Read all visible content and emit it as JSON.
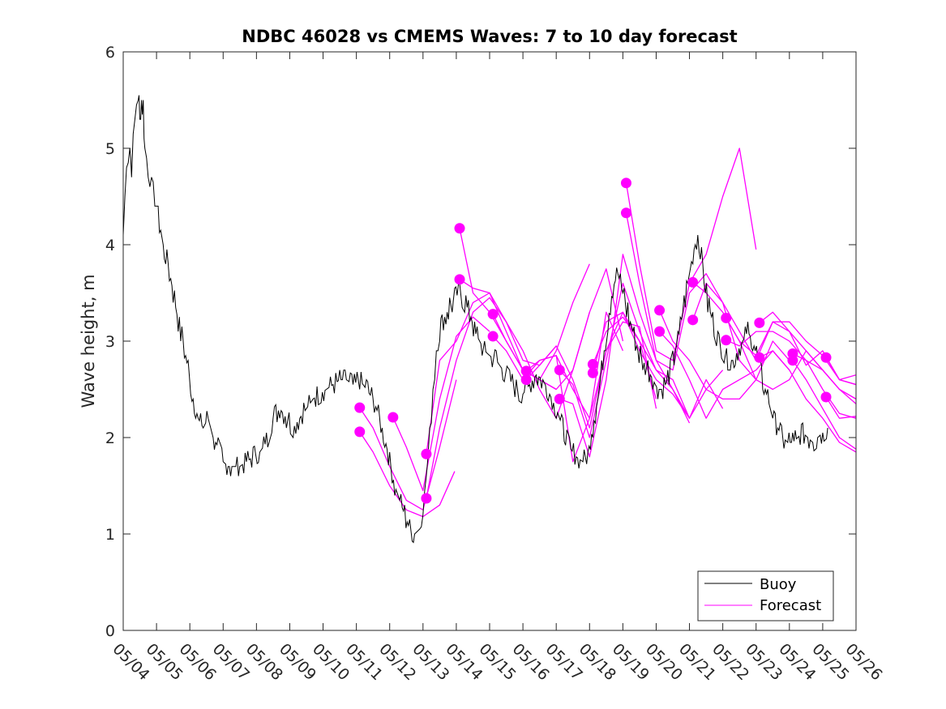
{
  "chart_data": {
    "type": "line",
    "title": "NDBC 46028 vs CMEMS Waves: 7 to 10 day forecast",
    "xlabel": "",
    "ylabel": "Wave height, m",
    "ylim": [
      0,
      6
    ],
    "yticks": [
      0,
      1,
      2,
      3,
      4,
      5,
      6
    ],
    "xlim": [
      0,
      22
    ],
    "xticks": [
      0,
      1,
      2,
      3,
      4,
      5,
      6,
      7,
      8,
      9,
      10,
      11,
      12,
      13,
      14,
      15,
      16,
      17,
      18,
      19,
      20,
      21,
      22
    ],
    "xticklabels": [
      "05/04",
      "05/05",
      "05/06",
      "05/07",
      "05/08",
      "05/09",
      "05/10",
      "05/11",
      "05/12",
      "05/13",
      "05/14",
      "05/15",
      "05/16",
      "05/17",
      "05/18",
      "05/19",
      "05/20",
      "05/21",
      "05/22",
      "05/23",
      "05/24",
      "05/25",
      "05/26"
    ],
    "x_units": "days after 05/04",
    "grid": false,
    "legend": {
      "position": "bottom-right",
      "entries": [
        "Buoy",
        "Forecast"
      ]
    },
    "colors": {
      "buoy": "#000000",
      "forecast": "#ff00ff"
    },
    "buoy": {
      "name": "Buoy",
      "x": [
        0,
        0.1,
        0.2,
        0.25,
        0.35,
        0.45,
        0.5,
        0.55,
        0.6,
        0.65,
        0.75,
        0.85,
        0.95,
        1.05,
        1.2,
        1.35,
        1.5,
        1.65,
        1.8,
        1.95,
        2.1,
        2.25,
        2.4,
        2.55,
        2.7,
        2.85,
        3.0,
        3.15,
        3.3,
        3.5,
        3.7,
        3.9,
        4.1,
        4.3,
        4.5,
        4.7,
        4.9,
        5.1,
        5.3,
        5.5,
        5.7,
        5.9,
        6.1,
        6.3,
        6.5,
        6.7,
        6.9,
        7.1,
        7.3,
        7.5,
        7.7,
        7.85,
        8.0,
        8.15,
        8.3,
        8.45,
        8.6,
        8.75,
        8.9,
        9.0,
        9.1,
        9.2,
        9.3,
        9.4,
        9.5,
        9.65,
        9.8,
        9.95,
        10.1,
        10.25,
        10.4,
        10.55,
        10.7,
        10.85,
        11.0,
        11.2,
        11.4,
        11.6,
        11.8,
        12.0,
        12.2,
        12.4,
        12.6,
        12.8,
        13.0,
        13.2,
        13.4,
        13.6,
        13.8,
        13.95,
        14.1,
        14.25,
        14.4,
        14.55,
        14.7,
        14.85,
        15.0,
        15.15,
        15.3,
        15.45,
        15.6,
        15.75,
        15.9,
        16.05,
        16.2,
        16.35,
        16.5,
        16.65,
        16.8,
        16.95,
        17.1,
        17.25,
        17.4,
        17.55,
        17.7,
        17.85,
        18.0,
        18.15,
        18.3,
        18.45,
        18.6,
        18.75,
        18.9,
        19.05,
        19.2,
        19.35,
        19.5,
        19.65,
        19.8,
        19.95,
        20.1,
        20.25,
        20.4,
        20.55,
        20.7,
        20.85,
        21.0,
        21.15
      ],
      "y": [
        4.1,
        4.9,
        5.0,
        4.8,
        5.3,
        5.6,
        5.3,
        5.5,
        5.4,
        5.0,
        4.8,
        4.6,
        4.5,
        4.3,
        4.0,
        3.8,
        3.5,
        3.2,
        3.0,
        2.7,
        2.4,
        2.2,
        2.1,
        2.2,
        2.0,
        1.9,
        1.75,
        1.7,
        1.7,
        1.7,
        1.75,
        1.8,
        1.85,
        1.95,
        2.2,
        2.3,
        2.2,
        2.1,
        2.2,
        2.3,
        2.4,
        2.45,
        2.5,
        2.55,
        2.6,
        2.6,
        2.55,
        2.6,
        2.5,
        2.4,
        2.2,
        2.0,
        1.75,
        1.5,
        1.35,
        1.2,
        1.05,
        1.0,
        1.05,
        1.3,
        1.6,
        2.0,
        2.5,
        2.9,
        3.1,
        3.25,
        3.35,
        3.45,
        3.5,
        3.4,
        3.3,
        3.1,
        3.0,
        2.9,
        2.85,
        2.8,
        2.7,
        2.6,
        2.5,
        2.45,
        2.55,
        2.65,
        2.6,
        2.45,
        2.3,
        2.1,
        1.9,
        1.8,
        1.75,
        1.85,
        2.1,
        2.4,
        2.8,
        3.2,
        3.55,
        3.7,
        3.5,
        3.3,
        3.1,
        2.9,
        2.8,
        2.7,
        2.6,
        2.5,
        2.5,
        2.6,
        2.8,
        3.0,
        3.3,
        3.6,
        3.9,
        4.1,
        3.8,
        3.4,
        3.2,
        3.0,
        2.9,
        2.8,
        2.8,
        2.9,
        3.0,
        3.1,
        3.0,
        2.8,
        2.6,
        2.4,
        2.2,
        2.1,
        2.0,
        1.95,
        1.95,
        2.0,
        2.05,
        2.0,
        1.95,
        2.0,
        2.05,
        2.1
      ]
    },
    "forecast_series": [
      {
        "x": [
          7.1,
          7.5,
          8.0,
          8.5,
          9.0,
          9.5,
          9.95
        ],
        "y": [
          2.06,
          1.85,
          1.5,
          1.25,
          1.18,
          1.3,
          1.65
        ]
      },
      {
        "x": [
          7.1,
          7.5,
          8.0,
          8.5,
          9.0,
          9.5,
          10.0
        ],
        "y": [
          2.31,
          2.1,
          1.7,
          1.35,
          1.25,
          1.9,
          2.6
        ]
      },
      {
        "x": [
          8.1,
          8.5,
          9.0,
          9.5,
          10.0,
          10.5,
          11.0
        ],
        "y": [
          2.21,
          1.9,
          1.45,
          2.4,
          3.05,
          3.25,
          3.1
        ]
      },
      {
        "x": [
          9.1,
          9.5,
          10.0,
          10.5,
          11.0,
          11.5,
          12.0,
          12.5,
          13.0
        ],
        "y": [
          1.37,
          2.1,
          2.8,
          3.3,
          3.45,
          3.2,
          2.8,
          2.75,
          2.95
        ]
      },
      {
        "x": [
          9.1,
          9.5,
          10.0,
          10.5,
          11.0,
          11.5,
          12.0,
          12.5,
          13.0
        ],
        "y": [
          1.83,
          2.8,
          3.0,
          3.4,
          3.5,
          3.1,
          2.7,
          2.6,
          2.5
        ]
      },
      {
        "x": [
          10.1,
          10.5,
          11.0,
          11.5,
          12.0,
          12.5,
          13.0,
          13.5,
          14.0
        ],
        "y": [
          4.17,
          3.5,
          3.3,
          3.0,
          2.7,
          2.6,
          2.9,
          3.4,
          3.8
        ]
      },
      {
        "x": [
          10.1,
          10.5,
          11.0,
          11.5,
          12.0,
          12.5,
          13.0,
          13.5,
          14.0
        ],
        "y": [
          3.64,
          3.55,
          3.5,
          3.2,
          2.9,
          2.5,
          2.2,
          2.7,
          3.3
        ]
      },
      {
        "x": [
          11.1,
          11.5,
          12.0,
          12.5,
          13.0,
          13.5,
          14.0,
          14.5,
          15.0
        ],
        "y": [
          3.28,
          3.0,
          2.7,
          2.6,
          2.5,
          2.7,
          3.3,
          3.75,
          3.0
        ]
      },
      {
        "x": [
          11.1,
          11.5,
          12.0,
          12.5,
          13.0,
          13.5,
          14.0,
          14.5,
          15.0
        ],
        "y": [
          3.05,
          2.9,
          2.6,
          2.8,
          2.85,
          1.75,
          2.2,
          3.3,
          2.9
        ]
      },
      {
        "x": [
          12.1,
          12.5,
          13.0,
          13.5,
          14.0,
          14.5,
          15.0,
          15.5,
          16.0
        ],
        "y": [
          2.69,
          2.8,
          2.85,
          2.5,
          2.2,
          2.9,
          3.2,
          3.15,
          2.3
        ]
      },
      {
        "x": [
          12.1,
          12.5,
          13.0,
          13.5,
          14.0,
          14.5,
          15.0,
          15.5,
          16.0
        ],
        "y": [
          2.6,
          2.75,
          2.95,
          2.6,
          2.1,
          2.9,
          3.3,
          3.0,
          2.4
        ]
      },
      {
        "x": [
          13.1,
          13.5,
          14.0,
          14.5,
          15.0,
          15.5,
          16.0,
          16.5,
          17.0
        ],
        "y": [
          2.7,
          2.55,
          2.0,
          2.8,
          3.6,
          3.1,
          2.7,
          2.6,
          2.2
        ]
      },
      {
        "x": [
          13.1,
          13.5,
          14.0,
          14.5,
          15.0,
          15.5,
          16.0,
          16.5,
          17.0
        ],
        "y": [
          2.4,
          2.35,
          1.8,
          2.6,
          3.9,
          3.3,
          2.8,
          2.5,
          2.15
        ]
      },
      {
        "x": [
          14.1,
          14.5,
          15.0,
          15.5,
          16.0,
          16.5,
          17.0,
          17.5,
          18.0
        ],
        "y": [
          2.76,
          3.1,
          3.25,
          3.0,
          2.7,
          2.5,
          2.2,
          2.5,
          2.7
        ]
      },
      {
        "x": [
          14.1,
          14.5,
          15.0,
          15.5,
          16.0,
          16.5,
          17.0,
          17.5,
          18.0
        ],
        "y": [
          2.67,
          3.2,
          3.3,
          2.9,
          2.6,
          2.45,
          2.2,
          2.6,
          2.3
        ]
      },
      {
        "x": [
          15.1,
          15.5,
          16.0,
          16.5,
          17.0,
          17.5,
          18.0,
          18.5,
          19.0
        ],
        "y": [
          4.64,
          3.8,
          2.9,
          2.8,
          3.6,
          3.9,
          4.5,
          5.0,
          3.95
        ]
      },
      {
        "x": [
          15.1,
          15.5,
          16.0,
          16.5,
          17.0,
          17.5,
          18.0,
          18.5,
          19.0
        ],
        "y": [
          4.33,
          3.6,
          2.8,
          2.7,
          3.5,
          3.7,
          3.4,
          2.8,
          2.6
        ]
      },
      {
        "x": [
          16.1,
          16.5,
          17.0,
          17.5,
          18.0,
          18.5,
          19.0,
          19.5,
          20.0
        ],
        "y": [
          3.32,
          3.0,
          2.8,
          2.5,
          2.4,
          2.4,
          2.6,
          3.0,
          2.8
        ]
      },
      {
        "x": [
          16.1,
          16.5,
          17.0,
          17.5,
          18.0,
          18.5,
          19.0,
          19.5,
          20.0
        ],
        "y": [
          3.1,
          2.95,
          2.6,
          2.2,
          2.5,
          2.6,
          2.7,
          2.9,
          2.7
        ]
      },
      {
        "x": [
          17.1,
          17.5,
          18.0,
          18.5,
          19.0,
          19.5,
          20.0,
          20.5,
          21.0,
          21.5,
          22.0
        ],
        "y": [
          3.61,
          3.5,
          3.3,
          3.0,
          2.6,
          2.5,
          2.6,
          2.9,
          2.7,
          2.5,
          2.4
        ]
      },
      {
        "x": [
          17.1,
          17.5,
          18.0,
          18.5,
          19.0,
          19.5,
          20.0,
          20.5,
          21.0,
          21.5,
          22.0
        ],
        "y": [
          3.22,
          3.6,
          3.4,
          3.1,
          2.8,
          3.2,
          3.1,
          2.75,
          2.9,
          2.6,
          2.55
        ]
      },
      {
        "x": [
          18.1,
          18.5,
          19.0,
          19.5,
          20.0,
          20.5,
          21.0,
          21.5,
          22.0
        ],
        "y": [
          3.24,
          3.0,
          2.85,
          3.2,
          3.2,
          3.0,
          2.85,
          2.6,
          2.65
        ]
      },
      {
        "x": [
          18.1,
          18.5,
          19.0,
          19.5,
          20.0,
          20.5,
          21.0,
          21.5,
          22.0
        ],
        "y": [
          3.01,
          2.95,
          3.1,
          3.1,
          3.0,
          2.8,
          2.5,
          2.25,
          2.2
        ]
      },
      {
        "x": [
          19.1,
          19.5,
          20.0,
          20.5,
          21.0,
          21.5,
          22.0
        ],
        "y": [
          3.19,
          3.3,
          3.1,
          2.9,
          2.7,
          2.5,
          2.35
        ]
      },
      {
        "x": [
          19.1,
          19.5,
          20.0,
          20.5,
          21.0,
          21.5,
          22.0
        ],
        "y": [
          2.83,
          2.9,
          2.7,
          2.4,
          2.2,
          1.95,
          1.85
        ]
      },
      {
        "x": [
          20.1,
          20.5,
          21.0,
          21.5,
          22.0
        ],
        "y": [
          2.87,
          2.8,
          2.7,
          2.5,
          2.4
        ]
      },
      {
        "x": [
          20.1,
          20.5,
          21.0,
          21.5,
          22.0
        ],
        "y": [
          2.8,
          2.6,
          2.3,
          2.0,
          1.88
        ]
      },
      {
        "x": [
          21.1,
          21.5,
          22.0
        ],
        "y": [
          2.83,
          2.6,
          2.55
        ]
      },
      {
        "x": [
          21.1,
          21.5,
          22.0
        ],
        "y": [
          2.42,
          2.2,
          2.22
        ]
      }
    ],
    "forecast_points": {
      "x": [
        7.1,
        7.1,
        8.1,
        9.1,
        9.1,
        10.1,
        10.1,
        11.1,
        11.1,
        12.1,
        12.1,
        13.1,
        13.1,
        14.1,
        14.1,
        15.1,
        15.1,
        16.1,
        16.1,
        17.1,
        17.1,
        18.1,
        18.1,
        19.1,
        19.1,
        20.1,
        20.1,
        21.1,
        21.1
      ],
      "y": [
        2.31,
        2.06,
        2.21,
        1.83,
        1.37,
        4.17,
        3.64,
        3.28,
        3.05,
        2.69,
        2.6,
        2.7,
        2.4,
        2.76,
        2.67,
        4.64,
        4.33,
        3.32,
        3.1,
        3.61,
        3.22,
        3.24,
        3.01,
        3.19,
        2.83,
        2.87,
        2.8,
        2.83,
        2.42
      ]
    }
  }
}
